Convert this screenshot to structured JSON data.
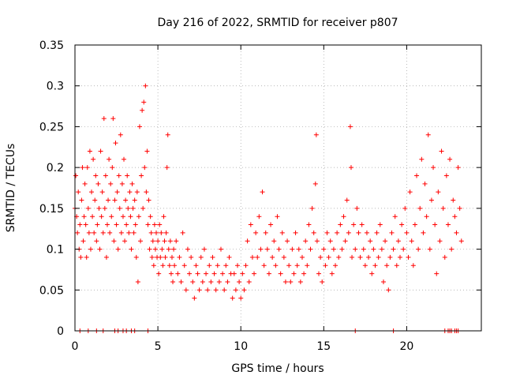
{
  "chart_data": {
    "type": "scatter",
    "title": "Day 216 of 2022, SRMTID for receiver p807",
    "xlabel": "GPS time / hours",
    "ylabel": "SRMTID / TECUs",
    "xlim": [
      0,
      24.5
    ],
    "ylim": [
      0,
      0.35
    ],
    "x_ticks": [
      0,
      5,
      10,
      15,
      20
    ],
    "x_tick_labels": [
      "0",
      "5",
      "10",
      "15",
      "20"
    ],
    "y_ticks": [
      0,
      0.05,
      0.1,
      0.15,
      0.2,
      0.25,
      0.3,
      0.35
    ],
    "y_tick_labels": [
      "0",
      "0.05",
      "0.1",
      "0.15",
      "0.2",
      "0.25",
      "0.3",
      "0.35"
    ],
    "grid": true,
    "marker": "+",
    "series": [
      {
        "name": "SRMTID",
        "color": "#ff0000",
        "points": [
          [
            0.0,
            0.15
          ],
          [
            0.05,
            0.19
          ],
          [
            0.1,
            0.14
          ],
          [
            0.15,
            0.12
          ],
          [
            0.2,
            0.17
          ],
          [
            0.25,
            0.1
          ],
          [
            0.3,
            0.13
          ],
          [
            0.35,
            0.09
          ],
          [
            0.4,
            0.16
          ],
          [
            0.45,
            0.2
          ],
          [
            0.5,
            0.11
          ],
          [
            0.55,
            0.14
          ],
          [
            0.6,
            0.18
          ],
          [
            0.65,
            0.13
          ],
          [
            0.7,
            0.09
          ],
          [
            0.75,
            0.2
          ],
          [
            0.8,
            0.15
          ],
          [
            0.85,
            0.12
          ],
          [
            0.9,
            0.22
          ],
          [
            0.95,
            0.1
          ],
          [
            1.0,
            0.17
          ],
          [
            1.05,
            0.14
          ],
          [
            1.1,
            0.21
          ],
          [
            1.15,
            0.12
          ],
          [
            1.2,
            0.16
          ],
          [
            1.25,
            0.19
          ],
          [
            1.3,
            0.11
          ],
          [
            1.35,
            0.13
          ],
          [
            1.4,
            0.18
          ],
          [
            1.45,
            0.15
          ],
          [
            1.5,
            0.1
          ],
          [
            1.55,
            0.22
          ],
          [
            1.6,
            0.14
          ],
          [
            1.65,
            0.17
          ],
          [
            1.7,
            0.12
          ],
          [
            1.75,
            0.26
          ],
          [
            1.8,
            0.15
          ],
          [
            1.85,
            0.19
          ],
          [
            1.9,
            0.09
          ],
          [
            1.95,
            0.13
          ],
          [
            2.0,
            0.16
          ],
          [
            2.05,
            0.21
          ],
          [
            2.1,
            0.12
          ],
          [
            2.15,
            0.18
          ],
          [
            2.2,
            0.14
          ],
          [
            2.25,
            0.2
          ],
          [
            2.3,
            0.26
          ],
          [
            2.35,
            0.11
          ],
          [
            2.4,
            0.16
          ],
          [
            2.45,
            0.23
          ],
          [
            2.5,
            0.13
          ],
          [
            2.55,
            0.17
          ],
          [
            2.6,
            0.1
          ],
          [
            2.65,
            0.19
          ],
          [
            2.7,
            0.15
          ],
          [
            2.75,
            0.24
          ],
          [
            2.8,
            0.12
          ],
          [
            2.85,
            0.18
          ],
          [
            2.9,
            0.14
          ],
          [
            2.95,
            0.21
          ],
          [
            3.0,
            0.11
          ],
          [
            3.05,
            0.16
          ],
          [
            3.1,
            0.13
          ],
          [
            3.15,
            0.19
          ],
          [
            3.2,
            0.15
          ],
          [
            3.25,
            0.12
          ],
          [
            3.3,
            0.17
          ],
          [
            3.35,
            0.14
          ],
          [
            3.4,
            0.1
          ],
          [
            3.45,
            0.18
          ],
          [
            3.5,
            0.15
          ],
          [
            3.55,
            0.12
          ],
          [
            3.6,
            0.16
          ],
          [
            3.65,
            0.13
          ],
          [
            3.7,
            0.09
          ],
          [
            3.75,
            0.17
          ],
          [
            3.8,
            0.06
          ],
          [
            3.85,
            0.14
          ],
          [
            3.9,
            0.25
          ],
          [
            3.95,
            0.11
          ],
          [
            4.0,
            0.19
          ],
          [
            4.05,
            0.27
          ],
          [
            4.1,
            0.15
          ],
          [
            4.15,
            0.28
          ],
          [
            4.2,
            0.2
          ],
          [
            4.25,
            0.3
          ],
          [
            4.3,
            0.17
          ],
          [
            4.35,
            0.22
          ],
          [
            4.4,
            0.13
          ],
          [
            4.45,
            0.16
          ],
          [
            4.5,
            0.1
          ],
          [
            4.55,
            0.14
          ],
          [
            4.6,
            0.12
          ],
          [
            4.65,
            0.09
          ],
          [
            4.7,
            0.11
          ],
          [
            4.75,
            0.08
          ],
          [
            4.8,
            0.13
          ],
          [
            4.85,
            0.1
          ],
          [
            4.9,
            0.12
          ],
          [
            4.95,
            0.09
          ],
          [
            5.0,
            0.11
          ],
          [
            5.05,
            0.07
          ],
          [
            5.1,
            0.13
          ],
          [
            5.15,
            0.09
          ],
          [
            5.2,
            0.12
          ],
          [
            5.25,
            0.1
          ],
          [
            5.3,
            0.08
          ],
          [
            5.35,
            0.14
          ],
          [
            5.4,
            0.11
          ],
          [
            5.45,
            0.09
          ],
          [
            5.5,
            0.12
          ],
          [
            5.55,
            0.2
          ],
          [
            5.6,
            0.24
          ],
          [
            5.65,
            0.1
          ],
          [
            5.7,
            0.08
          ],
          [
            5.75,
            0.11
          ],
          [
            5.8,
            0.07
          ],
          [
            5.85,
            0.09
          ],
          [
            5.9,
            0.06
          ],
          [
            5.95,
            0.1
          ],
          [
            6.0,
            0.08
          ],
          [
            6.1,
            0.11
          ],
          [
            6.2,
            0.07
          ],
          [
            6.3,
            0.09
          ],
          [
            6.4,
            0.06
          ],
          [
            6.5,
            0.12
          ],
          [
            6.6,
            0.08
          ],
          [
            6.7,
            0.05
          ],
          [
            6.8,
            0.1
          ],
          [
            6.9,
            0.07
          ],
          [
            7.0,
            0.09
          ],
          [
            7.1,
            0.06
          ],
          [
            7.2,
            0.04
          ],
          [
            7.3,
            0.08
          ],
          [
            7.4,
            0.07
          ],
          [
            7.5,
            0.05
          ],
          [
            7.6,
            0.09
          ],
          [
            7.7,
            0.06
          ],
          [
            7.8,
            0.1
          ],
          [
            7.9,
            0.07
          ],
          [
            8.0,
            0.05
          ],
          [
            8.1,
            0.08
          ],
          [
            8.2,
            0.06
          ],
          [
            8.3,
            0.09
          ],
          [
            8.4,
            0.07
          ],
          [
            8.5,
            0.05
          ],
          [
            8.6,
            0.08
          ],
          [
            8.7,
            0.06
          ],
          [
            8.8,
            0.1
          ],
          [
            8.9,
            0.07
          ],
          [
            9.0,
            0.05
          ],
          [
            9.1,
            0.08
          ],
          [
            9.2,
            0.06
          ],
          [
            9.3,
            0.09
          ],
          [
            9.4,
            0.07
          ],
          [
            9.5,
            0.04
          ],
          [
            9.6,
            0.07
          ],
          [
            9.7,
            0.05
          ],
          [
            9.8,
            0.08
          ],
          [
            9.9,
            0.06
          ],
          [
            10.0,
            0.04
          ],
          [
            10.1,
            0.07
          ],
          [
            10.2,
            0.05
          ],
          [
            10.3,
            0.08
          ],
          [
            10.4,
            0.11
          ],
          [
            10.5,
            0.06
          ],
          [
            10.6,
            0.13
          ],
          [
            10.7,
            0.09
          ],
          [
            10.8,
            0.07
          ],
          [
            10.9,
            0.12
          ],
          [
            11.0,
            0.09
          ],
          [
            11.1,
            0.14
          ],
          [
            11.2,
            0.1
          ],
          [
            11.3,
            0.17
          ],
          [
            11.4,
            0.08
          ],
          [
            11.5,
            0.12
          ],
          [
            11.6,
            0.1
          ],
          [
            11.7,
            0.07
          ],
          [
            11.8,
            0.13
          ],
          [
            11.9,
            0.09
          ],
          [
            12.0,
            0.11
          ],
          [
            12.1,
            0.08
          ],
          [
            12.2,
            0.14
          ],
          [
            12.3,
            0.1
          ],
          [
            12.4,
            0.07
          ],
          [
            12.5,
            0.12
          ],
          [
            12.6,
            0.09
          ],
          [
            12.7,
            0.06
          ],
          [
            12.8,
            0.11
          ],
          [
            12.9,
            0.08
          ],
          [
            13.0,
            0.06
          ],
          [
            13.1,
            0.1
          ],
          [
            13.2,
            0.07
          ],
          [
            13.3,
            0.12
          ],
          [
            13.4,
            0.08
          ],
          [
            13.5,
            0.1
          ],
          [
            13.6,
            0.06
          ],
          [
            13.7,
            0.09
          ],
          [
            13.8,
            0.07
          ],
          [
            13.9,
            0.11
          ],
          [
            14.0,
            0.08
          ],
          [
            14.1,
            0.13
          ],
          [
            14.2,
            0.1
          ],
          [
            14.3,
            0.15
          ],
          [
            14.4,
            0.12
          ],
          [
            14.5,
            0.18
          ],
          [
            14.55,
            0.24
          ],
          [
            14.6,
            0.11
          ],
          [
            14.7,
            0.07
          ],
          [
            14.8,
            0.09
          ],
          [
            14.9,
            0.06
          ],
          [
            15.0,
            0.1
          ],
          [
            15.1,
            0.08
          ],
          [
            15.2,
            0.12
          ],
          [
            15.3,
            0.09
          ],
          [
            15.4,
            0.11
          ],
          [
            15.5,
            0.07
          ],
          [
            15.6,
            0.1
          ],
          [
            15.7,
            0.08
          ],
          [
            15.8,
            0.12
          ],
          [
            15.9,
            0.09
          ],
          [
            16.0,
            0.13
          ],
          [
            16.1,
            0.1
          ],
          [
            16.2,
            0.14
          ],
          [
            16.3,
            0.11
          ],
          [
            16.4,
            0.16
          ],
          [
            16.5,
            0.12
          ],
          [
            16.6,
            0.25
          ],
          [
            16.65,
            0.2
          ],
          [
            16.7,
            0.09
          ],
          [
            16.8,
            0.13
          ],
          [
            16.9,
            0.1
          ],
          [
            17.0,
            0.15
          ],
          [
            17.1,
            0.12
          ],
          [
            17.2,
            0.09
          ],
          [
            17.3,
            0.13
          ],
          [
            17.4,
            0.1
          ],
          [
            17.5,
            0.08
          ],
          [
            17.6,
            0.12
          ],
          [
            17.7,
            0.09
          ],
          [
            17.8,
            0.11
          ],
          [
            17.9,
            0.07
          ],
          [
            18.0,
            0.1
          ],
          [
            18.1,
            0.08
          ],
          [
            18.2,
            0.12
          ],
          [
            18.3,
            0.09
          ],
          [
            18.4,
            0.13
          ],
          [
            18.5,
            0.1
          ],
          [
            18.6,
            0.06
          ],
          [
            18.7,
            0.11
          ],
          [
            18.8,
            0.08
          ],
          [
            18.9,
            0.05
          ],
          [
            19.0,
            0.09
          ],
          [
            19.1,
            0.12
          ],
          [
            19.2,
            0.1
          ],
          [
            19.3,
            0.14
          ],
          [
            19.4,
            0.08
          ],
          [
            19.5,
            0.11
          ],
          [
            19.6,
            0.09
          ],
          [
            19.7,
            0.13
          ],
          [
            19.8,
            0.1
          ],
          [
            19.9,
            0.15
          ],
          [
            20.0,
            0.12
          ],
          [
            20.1,
            0.09
          ],
          [
            20.2,
            0.17
          ],
          [
            20.3,
            0.11
          ],
          [
            20.4,
            0.08
          ],
          [
            20.5,
            0.13
          ],
          [
            20.6,
            0.19
          ],
          [
            20.7,
            0.1
          ],
          [
            20.8,
            0.15
          ],
          [
            20.9,
            0.21
          ],
          [
            21.0,
            0.12
          ],
          [
            21.1,
            0.18
          ],
          [
            21.2,
            0.14
          ],
          [
            21.3,
            0.24
          ],
          [
            21.4,
            0.1
          ],
          [
            21.5,
            0.16
          ],
          [
            21.6,
            0.2
          ],
          [
            21.7,
            0.13
          ],
          [
            21.8,
            0.07
          ],
          [
            21.9,
            0.17
          ],
          [
            22.0,
            0.11
          ],
          [
            22.1,
            0.22
          ],
          [
            22.2,
            0.15
          ],
          [
            22.3,
            0.09
          ],
          [
            22.4,
            0.19
          ],
          [
            22.5,
            0.13
          ],
          [
            22.6,
            0.21
          ],
          [
            22.7,
            0.1
          ],
          [
            22.8,
            0.16
          ],
          [
            22.9,
            0.14
          ],
          [
            23.0,
            0.12
          ],
          [
            23.1,
            0.2
          ],
          [
            23.2,
            0.15
          ],
          [
            23.3,
            0.11
          ]
        ],
        "zero_points_x": [
          0.3,
          0.8,
          1.3,
          1.7,
          2.4,
          2.6,
          2.9,
          3.1,
          3.4,
          3.6,
          4.4,
          16.9,
          19.2,
          22.3,
          22.5,
          22.6,
          22.7,
          22.9,
          23.0,
          23.1
        ]
      }
    ]
  }
}
